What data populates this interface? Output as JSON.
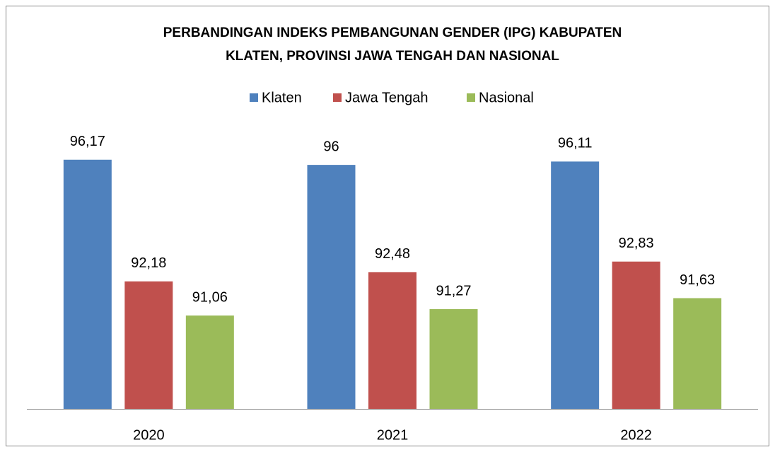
{
  "chart_data": {
    "type": "bar",
    "title": [
      "PERBANDINGAN INDEKS PEMBANGUNAN GENDER (IPG) KABUPATEN",
      "KLATEN, PROVINSI JAWA TENGAH DAN NASIONAL"
    ],
    "categories": [
      "2020",
      "2021",
      "2022"
    ],
    "series": [
      {
        "name": "Klaten",
        "color": "#4f81bd",
        "values": [
          96.17,
          96,
          96.11
        ],
        "value_labels": [
          "96,17",
          "96",
          "96,11"
        ]
      },
      {
        "name": "Jawa Tengah",
        "color": "#c0504d",
        "values": [
          92.18,
          92.48,
          92.83
        ],
        "value_labels": [
          "92,18",
          "92,48",
          "92,83"
        ]
      },
      {
        "name": "Nasional",
        "color": "#9bbb59",
        "values": [
          91.06,
          91.27,
          91.63
        ],
        "value_labels": [
          "91,06",
          "91,27",
          "91,63"
        ]
      }
    ],
    "ylim": [
      88,
      97
    ],
    "legend": "top"
  }
}
